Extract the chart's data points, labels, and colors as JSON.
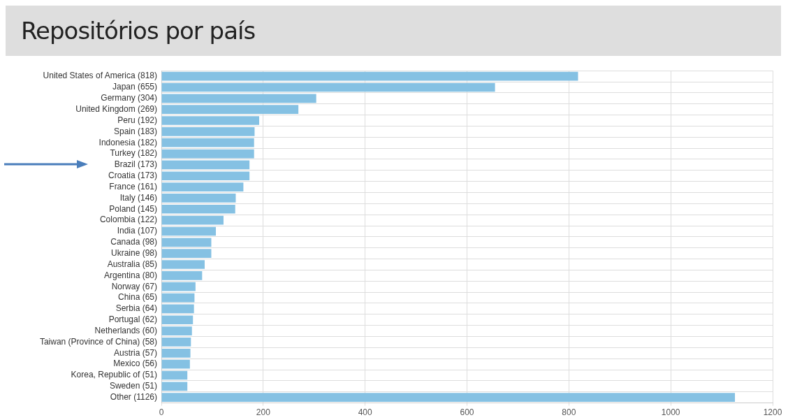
{
  "chart_data": {
    "type": "bar",
    "orientation": "horizontal",
    "title": "Repositórios por país",
    "categories": [
      "United States of America (818)",
      "Japan (655)",
      "Germany (304)",
      "United Kingdom (269)",
      "Peru (192)",
      "Spain (183)",
      "Indonesia (182)",
      "Turkey (182)",
      "Brazil (173)",
      "Croatia (173)",
      "France (161)",
      "Italy (146)",
      "Poland (145)",
      "Colombia (122)",
      "India (107)",
      "Canada (98)",
      "Ukraine (98)",
      "Australia (85)",
      "Argentina (80)",
      "Norway (67)",
      "China (65)",
      "Serbia (64)",
      "Portugal (62)",
      "Netherlands (60)",
      "Taiwan (Province of China) (58)",
      "Austria (57)",
      "Mexico (56)",
      "Korea, Republic of (51)",
      "Sweden (51)",
      "Other (1126)"
    ],
    "values": [
      818,
      655,
      304,
      269,
      192,
      183,
      182,
      182,
      173,
      173,
      161,
      146,
      145,
      122,
      107,
      98,
      98,
      85,
      80,
      67,
      65,
      64,
      62,
      60,
      58,
      57,
      56,
      51,
      51,
      1126
    ],
    "color": "#85c1e3",
    "xlim": [
      0,
      1200
    ],
    "xticks": [
      0,
      200,
      400,
      600,
      800,
      1000,
      1200
    ],
    "grid": true
  }
}
